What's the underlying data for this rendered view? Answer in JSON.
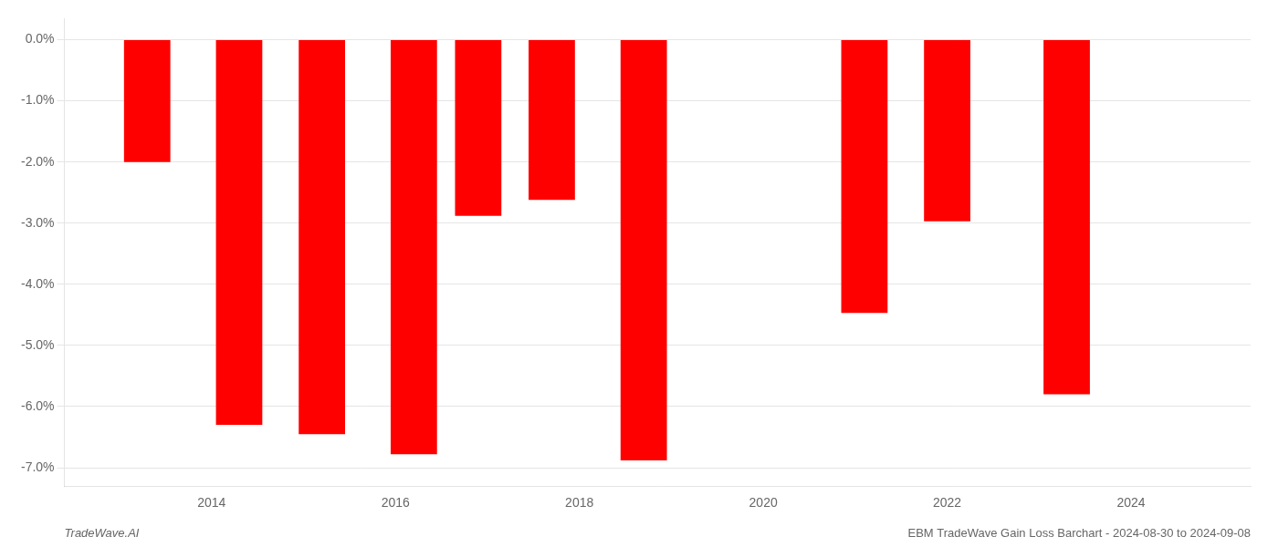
{
  "chart_data": {
    "type": "bar",
    "x": [
      2013.3,
      2014.3,
      2015.2,
      2016.2,
      2016.9,
      2017.7,
      2018.7,
      2021.1,
      2022.0,
      2023.3
    ],
    "values": [
      -2.0,
      -6.3,
      -6.45,
      -6.78,
      -2.88,
      -2.62,
      -6.88,
      -4.47,
      -2.97,
      -5.8
    ],
    "color": "#ff0000",
    "xlim": [
      2012.4,
      2025.3
    ],
    "xticks": [
      2014,
      2016,
      2018,
      2020,
      2022,
      2024
    ],
    "ylim": [
      -7.3,
      0.35
    ],
    "yticks": [
      {
        "value": 0.0,
        "label": "0.0%"
      },
      {
        "value": -1.0,
        "label": "-1.0%"
      },
      {
        "value": -2.0,
        "label": "-2.0%"
      },
      {
        "value": -3.0,
        "label": "-3.0%"
      },
      {
        "value": -4.0,
        "label": "-4.0%"
      },
      {
        "value": -5.0,
        "label": "-5.0%"
      },
      {
        "value": -6.0,
        "label": "-6.0%"
      },
      {
        "value": -7.0,
        "label": "-7.0%"
      }
    ],
    "grid": true,
    "annotations": [
      "TradeWave.AI",
      "EBM TradeWave Gain Loss Barchart - 2024-08-30 to 2024-09-08"
    ]
  }
}
